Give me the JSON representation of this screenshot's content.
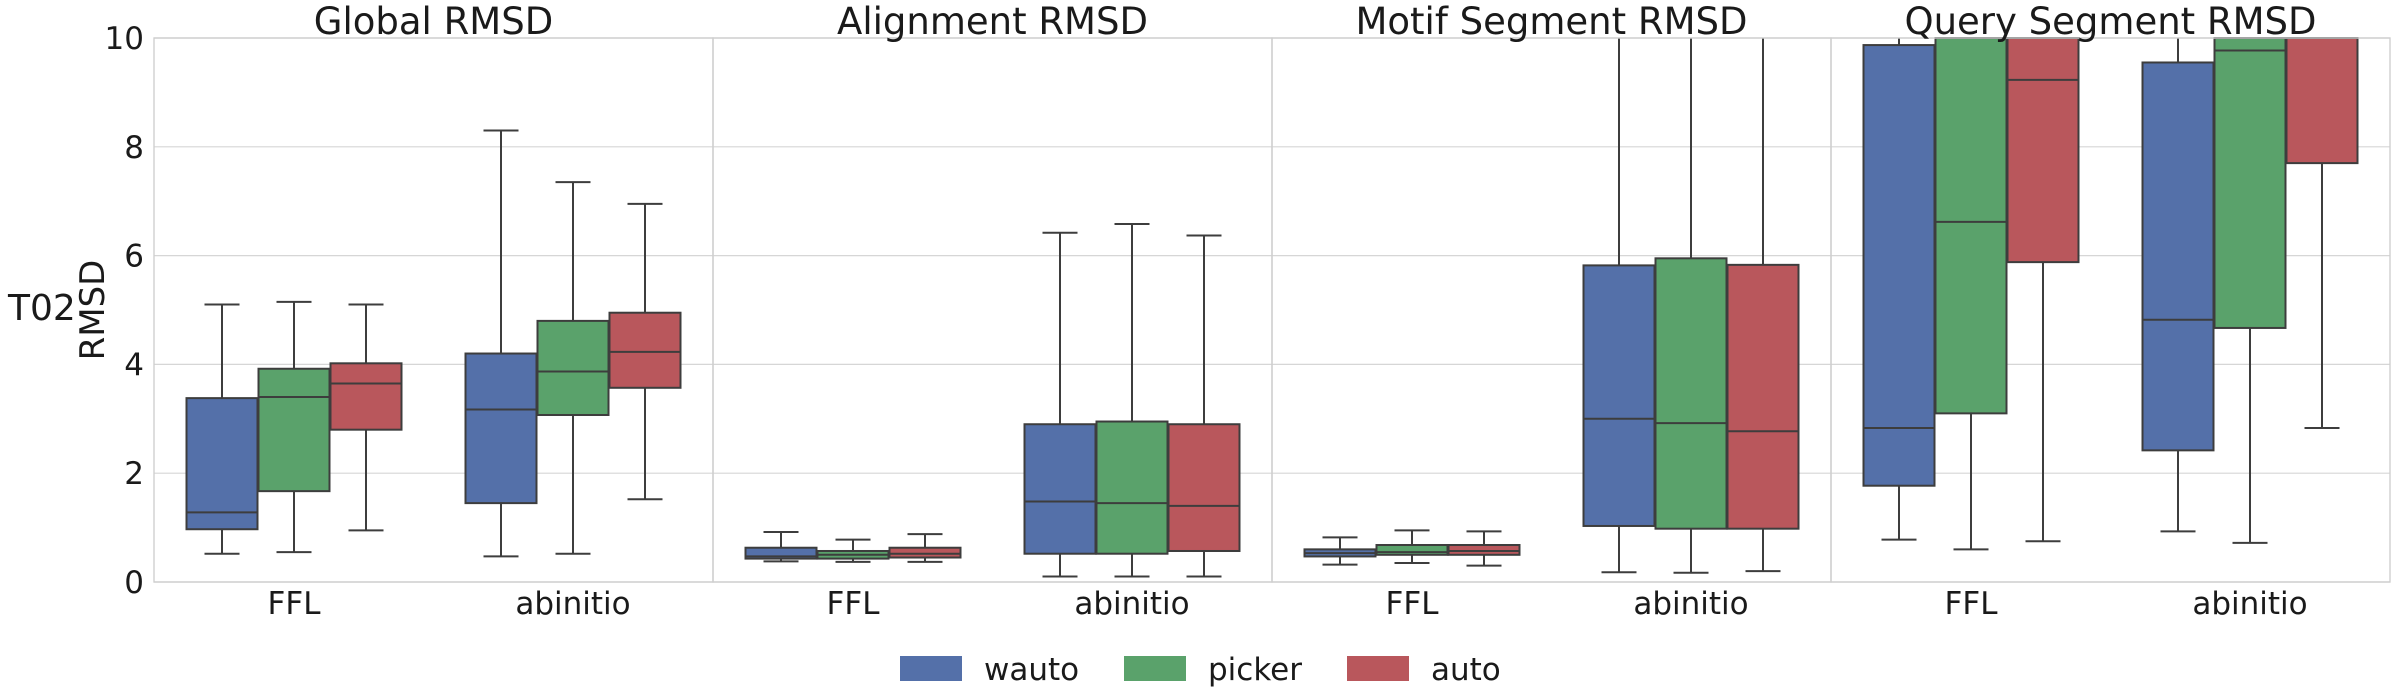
{
  "row_label": "T02",
  "ylabel": "RMSD",
  "y_ticks": [
    "0",
    "2",
    "4",
    "6",
    "8",
    "10"
  ],
  "legend": [
    {
      "label": "wauto",
      "color": "#5470a9"
    },
    {
      "label": "picker",
      "color": "#5aa26b"
    },
    {
      "label": "auto",
      "color": "#b9575c"
    }
  ],
  "chart_data": [
    {
      "type": "box",
      "title": "Global RMSD",
      "ylim": [
        0,
        10
      ],
      "grid": true,
      "categories": [
        "FFL",
        "abinitio"
      ],
      "series": [
        {
          "name": "wauto",
          "color": "#5470a9",
          "boxes": [
            {
              "whislo": 0.52,
              "q1": 0.97,
              "med": 1.28,
              "q3": 3.38,
              "whishi": 5.1
            },
            {
              "whislo": 0.47,
              "q1": 1.45,
              "med": 3.17,
              "q3": 4.2,
              "whishi": 8.3
            }
          ]
        },
        {
          "name": "picker",
          "color": "#5aa26b",
          "boxes": [
            {
              "whislo": 0.55,
              "q1": 1.67,
              "med": 3.4,
              "q3": 3.92,
              "whishi": 5.15
            },
            {
              "whislo": 0.52,
              "q1": 3.07,
              "med": 3.87,
              "q3": 4.8,
              "whishi": 7.35
            }
          ]
        },
        {
          "name": "auto",
          "color": "#b9575c",
          "boxes": [
            {
              "whislo": 0.95,
              "q1": 2.8,
              "med": 3.65,
              "q3": 4.02,
              "whishi": 5.1
            },
            {
              "whislo": 1.52,
              "q1": 3.57,
              "med": 4.23,
              "q3": 4.95,
              "whishi": 6.95
            }
          ]
        }
      ]
    },
    {
      "type": "box",
      "title": "Alignment RMSD",
      "ylim": [
        0,
        10
      ],
      "grid": true,
      "categories": [
        "FFL",
        "abinitio"
      ],
      "series": [
        {
          "name": "wauto",
          "color": "#5470a9",
          "boxes": [
            {
              "whislo": 0.38,
              "q1": 0.43,
              "med": 0.47,
              "q3": 0.63,
              "whishi": 0.92
            },
            {
              "whislo": 0.1,
              "q1": 0.52,
              "med": 1.48,
              "q3": 2.9,
              "whishi": 6.42
            }
          ]
        },
        {
          "name": "picker",
          "color": "#5aa26b",
          "boxes": [
            {
              "whislo": 0.37,
              "q1": 0.43,
              "med": 0.5,
              "q3": 0.57,
              "whishi": 0.78
            },
            {
              "whislo": 0.1,
              "q1": 0.52,
              "med": 1.45,
              "q3": 2.95,
              "whishi": 6.58
            }
          ]
        },
        {
          "name": "auto",
          "color": "#b9575c",
          "boxes": [
            {
              "whislo": 0.37,
              "q1": 0.45,
              "med": 0.52,
              "q3": 0.63,
              "whishi": 0.88
            },
            {
              "whislo": 0.1,
              "q1": 0.57,
              "med": 1.4,
              "q3": 2.9,
              "whishi": 6.37
            }
          ]
        }
      ]
    },
    {
      "type": "box",
      "title": "Motif Segment RMSD",
      "ylim": [
        0,
        10
      ],
      "grid": true,
      "categories": [
        "FFL",
        "abinitio"
      ],
      "series": [
        {
          "name": "wauto",
          "color": "#5470a9",
          "boxes": [
            {
              "whislo": 0.32,
              "q1": 0.47,
              "med": 0.53,
              "q3": 0.6,
              "whishi": 0.82
            },
            {
              "whislo": 0.18,
              "q1": 1.03,
              "med": 3.0,
              "q3": 5.82,
              "whishi": 10.0
            }
          ]
        },
        {
          "name": "picker",
          "color": "#5aa26b",
          "boxes": [
            {
              "whislo": 0.35,
              "q1": 0.5,
              "med": 0.55,
              "q3": 0.68,
              "whishi": 0.95
            },
            {
              "whislo": 0.17,
              "q1": 0.98,
              "med": 2.92,
              "q3": 5.95,
              "whishi": 10.0
            }
          ]
        },
        {
          "name": "auto",
          "color": "#b9575c",
          "boxes": [
            {
              "whislo": 0.3,
              "q1": 0.5,
              "med": 0.57,
              "q3": 0.68,
              "whishi": 0.93
            },
            {
              "whislo": 0.2,
              "q1": 0.98,
              "med": 2.77,
              "q3": 5.83,
              "whishi": 10.0
            }
          ]
        }
      ]
    },
    {
      "type": "box",
      "title": "Query Segment RMSD",
      "ylim": [
        0,
        10
      ],
      "grid": true,
      "categories": [
        "FFL",
        "abinitio"
      ],
      "series": [
        {
          "name": "wauto",
          "color": "#5470a9",
          "boxes": [
            {
              "whislo": 0.78,
              "q1": 1.77,
              "med": 2.83,
              "q3": 9.87,
              "whishi": 10.0
            },
            {
              "whislo": 0.93,
              "q1": 2.42,
              "med": 4.82,
              "q3": 9.55,
              "whishi": 10.0
            }
          ]
        },
        {
          "name": "picker",
          "color": "#5aa26b",
          "boxes": [
            {
              "whislo": 0.6,
              "q1": 3.1,
              "med": 6.62,
              "q3": 10.0,
              "whishi": 10.0
            },
            {
              "whislo": 0.72,
              "q1": 4.67,
              "med": 9.77,
              "q3": 10.0,
              "whishi": 10.0
            }
          ]
        },
        {
          "name": "auto",
          "color": "#b9575c",
          "boxes": [
            {
              "whislo": 0.75,
              "q1": 5.88,
              "med": 9.23,
              "q3": 10.0,
              "whishi": 10.0
            },
            {
              "whislo": 2.83,
              "q1": 7.7,
              "med": 10.0,
              "q3": 10.0,
              "whishi": 10.0
            }
          ]
        }
      ]
    }
  ]
}
